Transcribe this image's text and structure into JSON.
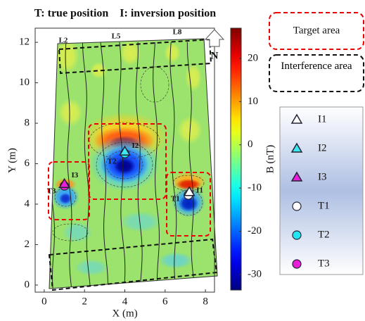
{
  "chart_data": {
    "type": "contour-map",
    "title": "T: true position    I: inversion position",
    "xlabel": "X (m)",
    "ylabel": "Y (m)",
    "xlim": [
      -0.45,
      8.45
    ],
    "ylim": [
      -0.35,
      12.7
    ],
    "xticks": [
      0,
      2,
      4,
      6,
      8
    ],
    "yticks": [
      0,
      2,
      4,
      6,
      8,
      10,
      12
    ],
    "colorbar": {
      "label": "B (nT)",
      "clim": [
        -33.6,
        27
      ],
      "ticks": [
        20,
        10,
        0,
        -10,
        -20,
        -30
      ],
      "colormap": "jet"
    },
    "line_labels": [
      "L2",
      "L5",
      "L8"
    ],
    "north": "N",
    "target_label": "Target area",
    "interference_label": "Interference area",
    "points": [
      {
        "name": "I1",
        "x": 7.2,
        "y": 4.6,
        "marker": "triangle",
        "color": "#ffffff"
      },
      {
        "name": "I2",
        "x": 4.0,
        "y": 6.6,
        "marker": "triangle",
        "color": "#3fe8f0"
      },
      {
        "name": "I3",
        "x": 1.0,
        "y": 5.0,
        "marker": "triangle",
        "color": "#e81fd8"
      },
      {
        "name": "T1",
        "x": 7.15,
        "y": 4.45,
        "marker": "circle",
        "color": "#ffffff"
      },
      {
        "name": "T2",
        "x": 4.0,
        "y": 6.5,
        "marker": "circle",
        "color": "#22e6f2"
      },
      {
        "name": "T3",
        "x": 1.0,
        "y": 4.9,
        "marker": "circle",
        "color": "#e81fd8"
      }
    ]
  }
}
